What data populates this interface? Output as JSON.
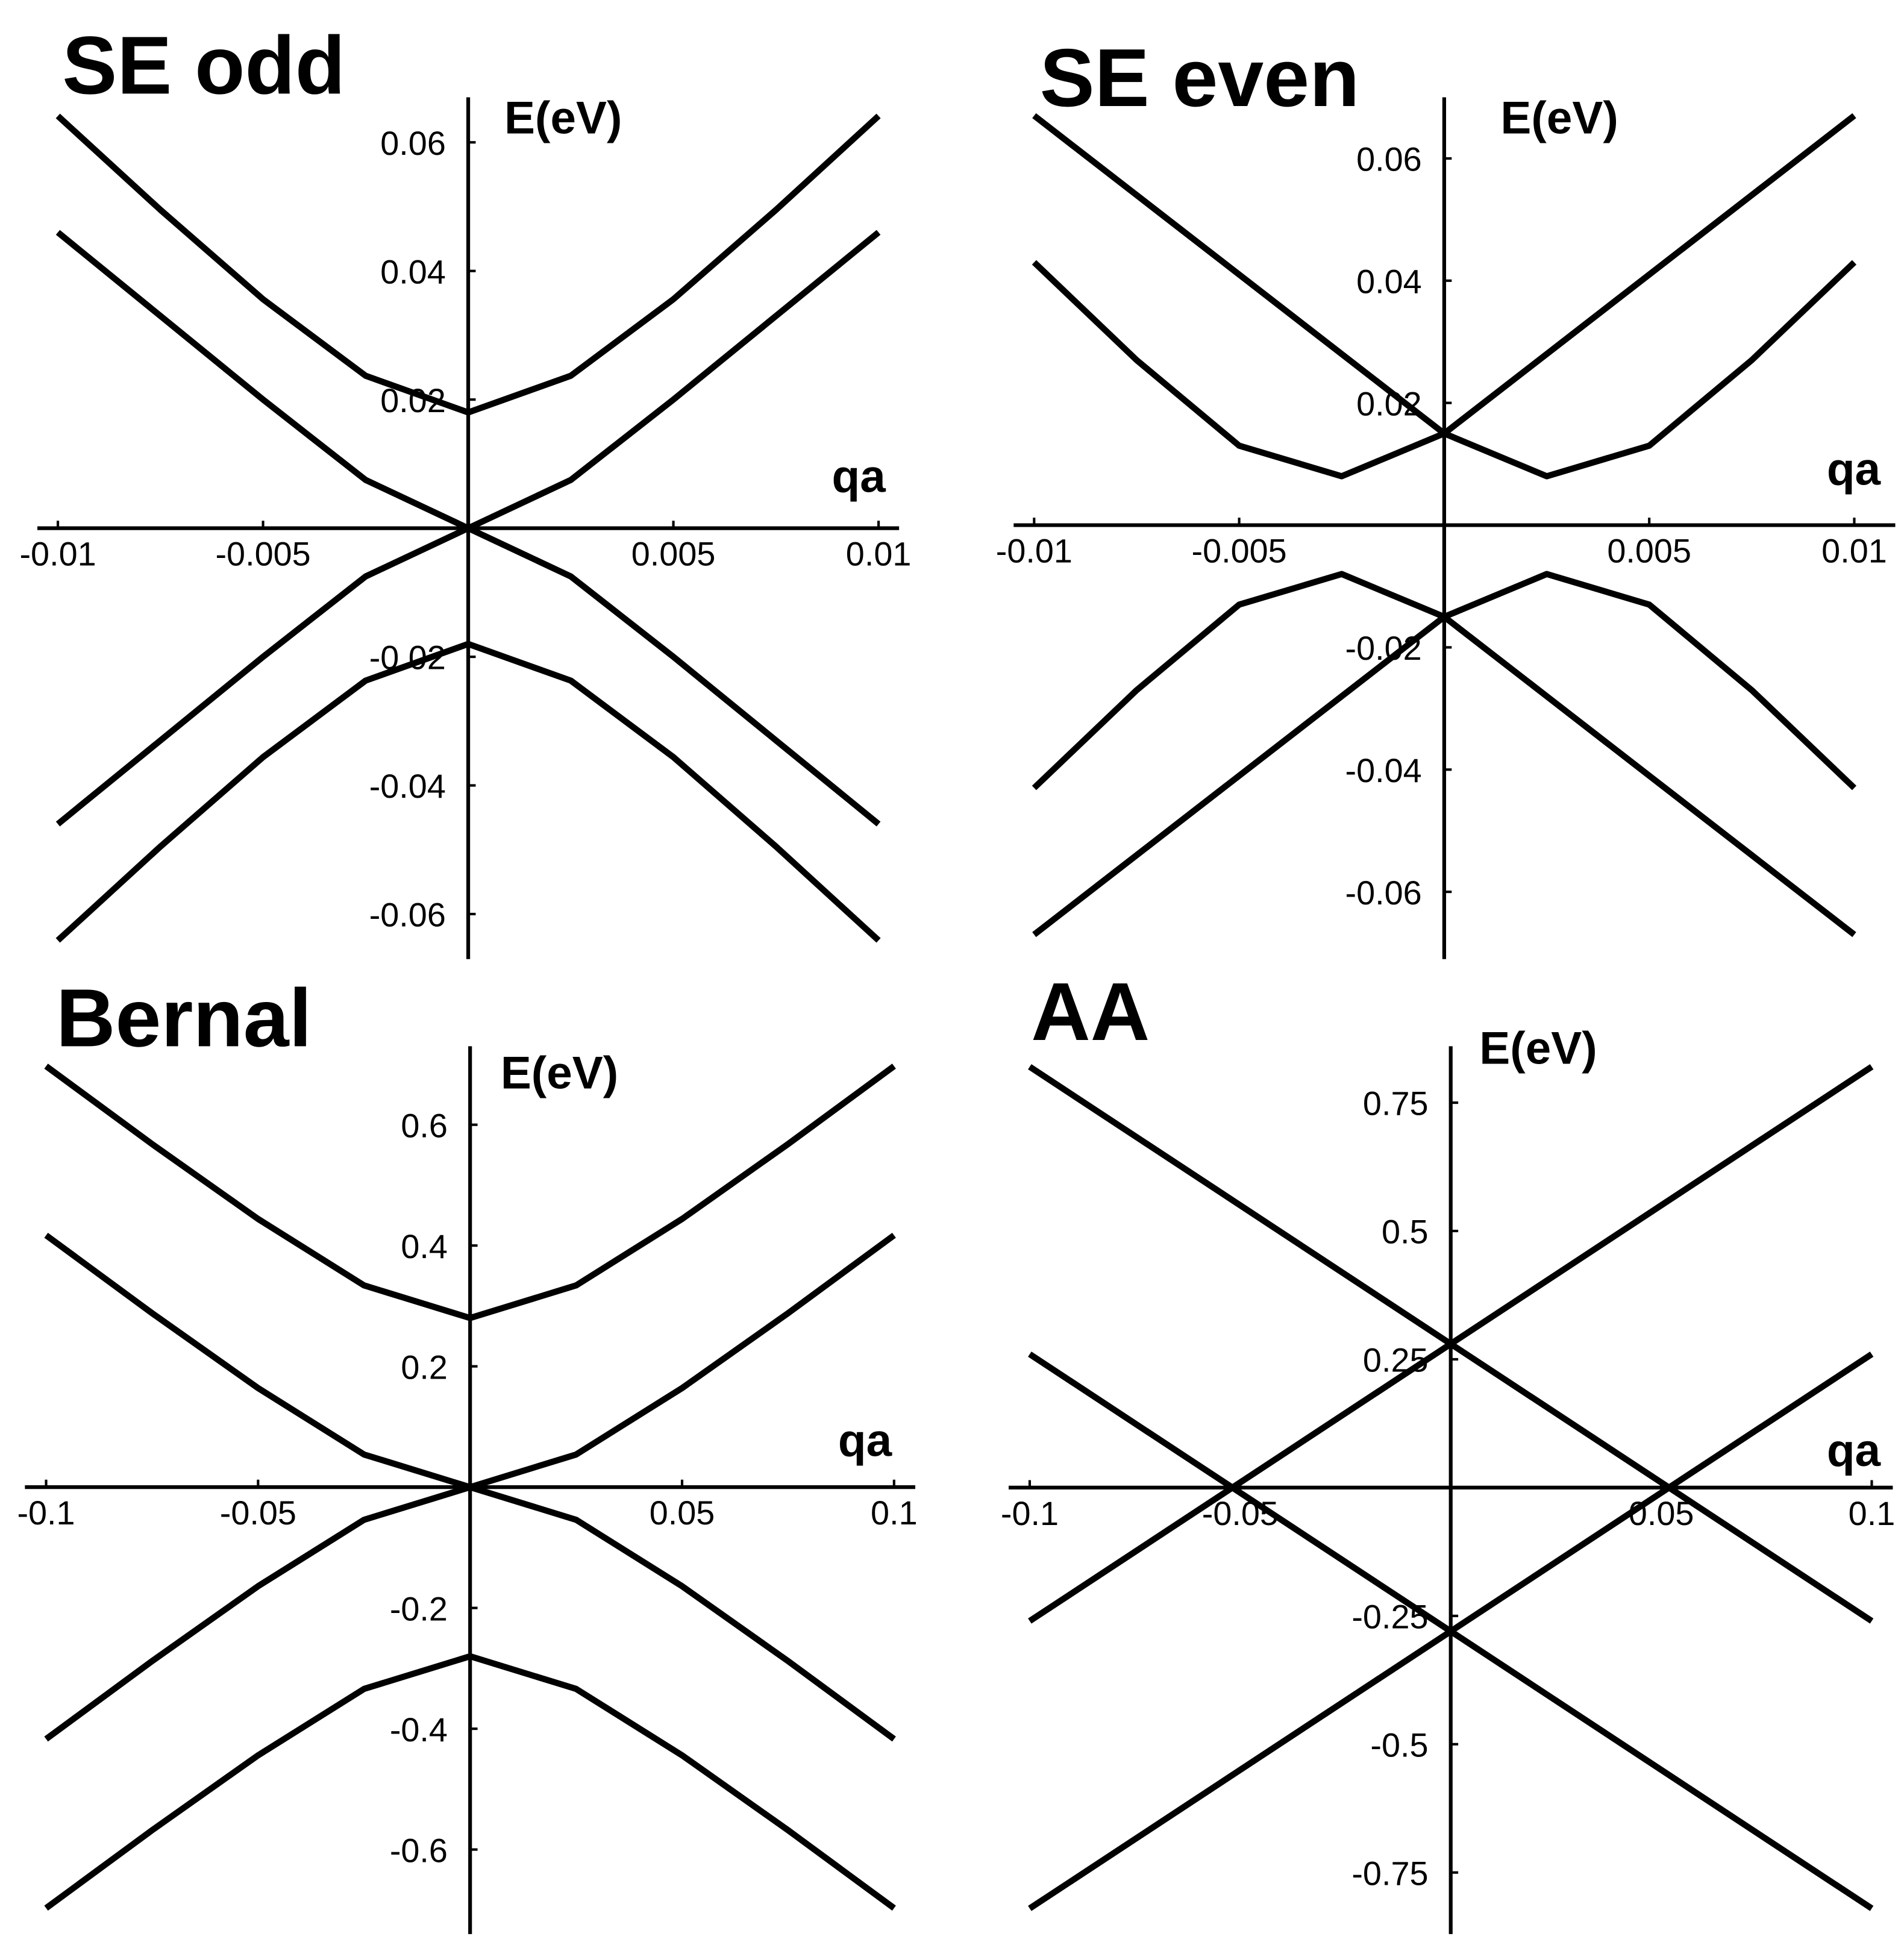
{
  "chart_data": [
    {
      "type": "line",
      "title": "SE odd",
      "xlabel": "qa",
      "ylabel": "E(eV)",
      "x": [
        -0.01,
        -0.0075,
        -0.005,
        -0.0025,
        0,
        0.0025,
        0.005,
        0.0075,
        0.01
      ],
      "series": [
        {
          "color": "#000000",
          "values": [
            0.0641,
            0.0495,
            0.0356,
            0.0237,
            0.018,
            0.0237,
            0.0356,
            0.0495,
            0.0641
          ]
        },
        {
          "color": "#000000",
          "values": [
            0.046,
            0.033,
            0.02,
            0.0075,
            0,
            0.0075,
            0.02,
            0.033,
            0.046
          ]
        },
        {
          "color": "#000000",
          "values": [
            -0.046,
            -0.033,
            -0.02,
            -0.0075,
            0,
            -0.0075,
            -0.02,
            -0.033,
            -0.046
          ]
        },
        {
          "color": "#000000",
          "values": [
            -0.0641,
            -0.0495,
            -0.0356,
            -0.0237,
            -0.018,
            -0.0237,
            -0.0356,
            -0.0495,
            -0.0641
          ]
        }
      ],
      "xlim": [
        -0.0105,
        0.0105
      ],
      "ylim": [
        -0.067,
        0.067
      ],
      "xticks": [
        -0.01,
        -0.005,
        0.005,
        0.01
      ],
      "yticks": [
        0.06,
        0.04,
        0.02,
        -0.02,
        -0.04,
        -0.06
      ]
    },
    {
      "type": "line",
      "title": "SE even",
      "xlabel": "qa",
      "ylabel": "E(eV)",
      "x": [
        -0.01,
        -0.0075,
        -0.005,
        -0.0025,
        0,
        0.0025,
        0.005,
        0.0075,
        0.01
      ],
      "series": [
        {
          "color": "#000000",
          "values": [
            0.067,
            0.054,
            0.041,
            0.028,
            0.015,
            0.008,
            0.013,
            0.027,
            0.043
          ]
        },
        {
          "color": "#000000",
          "values": [
            0.043,
            0.027,
            0.013,
            0.008,
            0.015,
            0.028,
            0.041,
            0.054,
            0.067
          ]
        },
        {
          "color": "#000000",
          "values": [
            -0.067,
            -0.054,
            -0.041,
            -0.028,
            -0.015,
            -0.008,
            -0.013,
            -0.027,
            -0.043
          ]
        },
        {
          "color": "#000000",
          "values": [
            -0.043,
            -0.027,
            -0.013,
            -0.008,
            -0.015,
            -0.028,
            -0.041,
            -0.054,
            -0.067
          ]
        }
      ],
      "xlim": [
        -0.0105,
        0.011
      ],
      "ylim": [
        -0.071,
        0.07
      ],
      "xticks": [
        -0.01,
        -0.005,
        0.005,
        0.01
      ],
      "yticks": [
        0.06,
        0.04,
        0.02,
        -0.02,
        -0.04,
        -0.06
      ]
    },
    {
      "type": "line",
      "title": "Bernal",
      "xlabel": "qa",
      "ylabel": "E(eV)",
      "x": [
        -0.1,
        -0.075,
        -0.05,
        -0.025,
        0,
        0.025,
        0.05,
        0.075,
        0.1
      ],
      "series": [
        {
          "color": "#000000",
          "values": [
            0.697,
            0.568,
            0.444,
            0.334,
            0.28,
            0.334,
            0.444,
            0.568,
            0.697
          ]
        },
        {
          "color": "#000000",
          "values": [
            0.417,
            0.288,
            0.164,
            0.054,
            0,
            0.054,
            0.164,
            0.288,
            0.417
          ]
        },
        {
          "color": "#000000",
          "values": [
            -0.417,
            -0.288,
            -0.164,
            -0.054,
            0,
            -0.054,
            -0.164,
            -0.288,
            -0.417
          ]
        },
        {
          "color": "#000000",
          "values": [
            -0.697,
            -0.568,
            -0.444,
            -0.334,
            -0.28,
            -0.334,
            -0.444,
            -0.568,
            -0.697
          ]
        }
      ],
      "xlim": [
        -0.105,
        0.105
      ],
      "ylim": [
        -0.74,
        0.73
      ],
      "xticks": [
        -0.1,
        -0.05,
        0.05,
        0.1
      ],
      "yticks": [
        0.6,
        0.4,
        0.2,
        -0.2,
        -0.4,
        -0.6
      ]
    },
    {
      "type": "line",
      "title": "AA",
      "xlabel": "qa",
      "ylabel": "E(eV)",
      "x": [
        -0.1,
        0,
        0.1
      ],
      "series": [
        {
          "color": "#000000",
          "values": [
            -0.26,
            0.28,
            0.82
          ]
        },
        {
          "color": "#000000",
          "values": [
            0.82,
            0.28,
            -0.26
          ]
        },
        {
          "color": "#000000",
          "values": [
            -0.82,
            -0.28,
            0.26
          ]
        },
        {
          "color": "#000000",
          "values": [
            0.26,
            -0.28,
            -0.82
          ]
        }
      ],
      "xlim": [
        -0.105,
        0.105
      ],
      "ylim": [
        -0.87,
        0.86
      ],
      "xticks": [
        -0.1,
        -0.05,
        0.05,
        0.1
      ],
      "yticks": [
        0.75,
        0.5,
        0.25,
        -0.25,
        -0.5,
        -0.75
      ]
    }
  ]
}
